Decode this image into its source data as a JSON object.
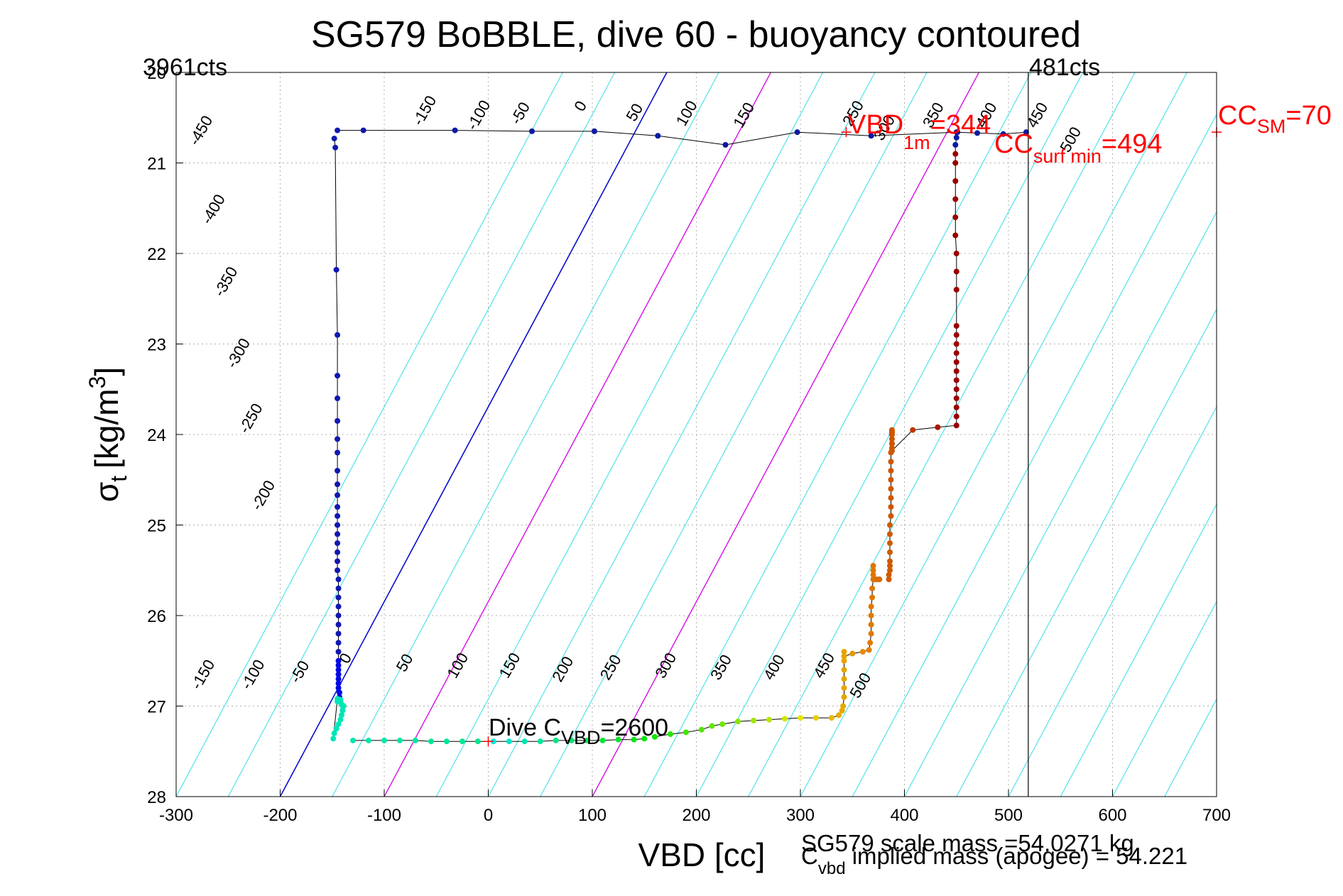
{
  "chart_data": {
    "type": "scatter",
    "title": "SG579 BoBBLE, dive 60 - buoyancy contoured",
    "xlabel": "VBD [cc]",
    "ylabel_main": "σ",
    "ylabel_sub": "t",
    "ylabel_units": "[kg/m",
    "ylabel_sup": "3",
    "ylabel_close": "]",
    "xlim": [
      -300,
      700
    ],
    "ylim": [
      20,
      28
    ],
    "y_reversed": true,
    "grid": true,
    "xticks": [
      -300,
      -200,
      -100,
      0,
      100,
      200,
      300,
      400,
      500,
      600,
      700
    ],
    "xtick_labels": [
      "-300",
      "-200",
      "-100",
      "0",
      "100",
      "200",
      "300",
      "400",
      "500",
      "600",
      "700"
    ],
    "yticks": [
      20,
      21,
      22,
      23,
      24,
      25,
      26,
      27,
      28
    ],
    "ytick_labels": [
      "20",
      "21",
      "22",
      "23",
      "24",
      "25",
      "26",
      "27",
      "28"
    ],
    "colors": {
      "contour": "#5fe3ea",
      "zero_contour": "#0000cc",
      "magenta_contour": "#e600e6",
      "marker": "#ff0000",
      "trace": "#000000",
      "grid": "#b0b0b0"
    },
    "contours": {
      "slope_sigma_per_cc": 0.02153,
      "x_at_sigma28": [
        -300,
        -250,
        -200,
        -150,
        -100,
        -50,
        0,
        50,
        100,
        150,
        200,
        250,
        300,
        350,
        400,
        450,
        500,
        550,
        600,
        650,
        700
      ],
      "magenta_x_at_sigma28": [
        -100,
        100
      ],
      "zero_x_at_sigma28": -200
    },
    "contour_labels_top": {
      "labels": [
        "-450",
        "-400",
        "-350",
        "-300",
        "-250",
        "-200",
        "-150",
        "-100",
        "-50",
        "0",
        "50",
        "100",
        "150",
        "250",
        "300",
        "350",
        "400",
        "450",
        "500"
      ],
      "x": [
        -272,
        -260,
        -248,
        -236,
        -224,
        -212,
        -57,
        -5,
        35,
        93,
        145,
        195,
        250,
        355,
        385,
        432,
        483,
        532,
        564
      ],
      "sigma": [
        20.67,
        21.54,
        22.34,
        23.13,
        23.85,
        24.7,
        20.45,
        20.5,
        20.48,
        20.4,
        20.47,
        20.48,
        20.5,
        20.48,
        20.64,
        20.5,
        20.5,
        20.5,
        20.77
      ]
    },
    "contour_labels_bottom": {
      "labels": [
        "-150",
        "-100",
        "-50",
        "0",
        "50",
        "100",
        "150",
        "200",
        "250",
        "300",
        "350",
        "400",
        "450",
        "500"
      ],
      "x": [
        -270,
        -222,
        -177,
        -133,
        -76,
        -25,
        25,
        76,
        122,
        175,
        228,
        279,
        327,
        362
      ],
      "sigma": [
        26.68,
        26.68,
        26.65,
        26.5,
        26.55,
        26.58,
        26.58,
        26.62,
        26.6,
        26.58,
        26.6,
        26.6,
        26.58,
        26.8
      ]
    },
    "annotations": {
      "counts_left": "3961cts",
      "counts_right": "481cts",
      "vbd1m_main": "VBD",
      "vbd1m_sub": "1m",
      "vbd1m_value": "=344",
      "vbd1m_point": [
        344,
        20.66
      ],
      "ccsurf_main": "CC",
      "ccsurf_sub": "surf min",
      "ccsurf_value": "=494",
      "ccsm_main": "CC",
      "ccsm_sub": "SM",
      "ccsm_value": "=70",
      "ccsm_point": [
        700,
        20.66
      ],
      "dive_cvbd_main": "Dive C",
      "dive_cvbd_sub": "VBD",
      "dive_cvbd_value": "=2600",
      "dive_cvbd_point": [
        0,
        27.39
      ],
      "vertical_line_x": 519,
      "scale_mass": "SG579 scale mass =54.0271 kg",
      "implied_main": "C",
      "implied_sub": "vbd",
      "implied_text": " implied mass (apogee) = 54.221"
    },
    "series": [
      {
        "x": [
          -148,
          -147,
          -146,
          -145,
          -145,
          -145,
          -145,
          -145,
          -145,
          -145,
          -145,
          -145,
          -145,
          -145,
          -145,
          -145,
          -145,
          -145,
          -145,
          -145,
          -144,
          -144,
          -144,
          -144,
          -144,
          -144,
          -144,
          -144,
          -144,
          -144,
          -144,
          -144,
          -144,
          -144,
          -144,
          -144,
          -143,
          -143,
          -142,
          -142,
          -141,
          -140,
          -139,
          -140,
          -141,
          -142,
          -144,
          -146,
          -148,
          -149,
          -145,
          -145
        ],
        "y": [
          20.73,
          20.83,
          22.18,
          22.9,
          23.35,
          23.6,
          23.85,
          24.05,
          24.2,
          24.4,
          24.55,
          24.67,
          24.8,
          24.9,
          25.0,
          25.1,
          25.2,
          25.3,
          25.4,
          25.5,
          25.6,
          25.7,
          25.8,
          25.9,
          26.0,
          26.1,
          26.2,
          26.3,
          26.4,
          26.5,
          26.55,
          26.6,
          26.65,
          26.7,
          26.75,
          26.8,
          26.85,
          26.9,
          26.93,
          26.96,
          26.98,
          27.0,
          27.0,
          27.05,
          27.1,
          27.15,
          27.2,
          27.25,
          27.3,
          27.36,
          26.92,
          26.95
        ]
      },
      {
        "x": [
          -145,
          -120,
          -32,
          42,
          102,
          163,
          228,
          297,
          368,
          450,
          470,
          495,
          517
        ],
        "y": [
          20.64,
          20.64,
          20.64,
          20.65,
          20.65,
          20.7,
          20.8,
          20.66,
          20.7,
          20.66,
          20.67,
          20.68,
          20.66
        ]
      },
      {
        "x": [
          -130,
          -115,
          -100,
          -85,
          -70,
          -55,
          -40,
          -25,
          -10,
          5,
          20,
          35,
          50,
          65,
          80,
          95,
          110,
          125,
          140,
          150
        ],
        "y": [
          27.38,
          27.38,
          27.38,
          27.38,
          27.38,
          27.39,
          27.39,
          27.39,
          27.39,
          27.39,
          27.39,
          27.39,
          27.39,
          27.38,
          27.38,
          27.38,
          27.38,
          27.37,
          27.37,
          27.36
        ]
      },
      {
        "x": [
          160,
          175,
          190,
          205,
          215,
          225,
          240,
          255,
          270,
          285,
          300,
          315,
          330,
          337,
          340,
          341,
          342,
          342,
          342,
          342,
          342
        ],
        "y": [
          27.34,
          27.31,
          27.29,
          27.26,
          27.22,
          27.2,
          27.17,
          27.16,
          27.15,
          27.14,
          27.13,
          27.13,
          27.13,
          27.1,
          27.05,
          27.0,
          26.9,
          26.8,
          26.7,
          26.6,
          26.5
        ]
      },
      {
        "x": [
          342,
          342,
          350,
          360,
          366,
          367,
          368,
          368,
          368,
          368,
          369,
          369,
          370,
          370,
          370,
          370,
          372,
          374,
          376
        ],
        "y": [
          26.4,
          26.45,
          26.42,
          26.4,
          26.38,
          26.3,
          26.2,
          26.1,
          26.0,
          25.9,
          25.8,
          25.7,
          25.6,
          25.55,
          25.5,
          25.45,
          25.6,
          25.6,
          25.6
        ]
      },
      {
        "x": [
          385,
          385,
          386,
          386,
          386,
          386,
          386,
          386,
          386,
          387,
          387,
          387,
          387,
          387,
          387,
          387,
          387,
          388,
          388,
          388,
          388,
          388,
          388,
          388,
          388,
          388,
          388,
          388,
          408,
          432,
          450,
          450,
          450,
          450,
          450,
          450,
          450,
          450,
          450,
          450,
          450,
          450,
          450,
          450,
          450,
          449,
          449,
          449,
          449,
          449,
          449,
          449,
          450,
          451
        ],
        "y": [
          25.6,
          25.55,
          25.5,
          25.45,
          25.4,
          25.3,
          25.2,
          25.1,
          25.0,
          24.9,
          24.8,
          24.7,
          24.6,
          24.5,
          24.4,
          24.3,
          24.2,
          24.1,
          24.0,
          23.98,
          23.96,
          23.95,
          23.97,
          24.0,
          24.05,
          24.1,
          24.15,
          24.18,
          23.95,
          23.92,
          23.9,
          23.8,
          23.7,
          23.6,
          23.5,
          23.4,
          23.3,
          23.2,
          23.1,
          23.0,
          22.9,
          22.8,
          22.4,
          22.2,
          22.0,
          21.8,
          21.6,
          21.4,
          21.2,
          21.0,
          20.9,
          20.8,
          20.72,
          20.66
        ]
      }
    ]
  }
}
